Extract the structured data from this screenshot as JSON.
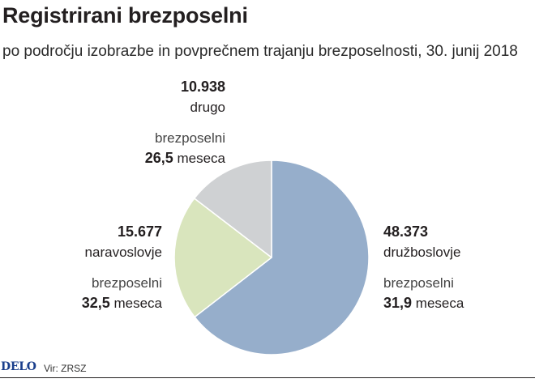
{
  "title": "Registrirani brezposelni",
  "subtitle": "po področju izobrazbe in povprečnem trajanju brezposelnosti, 30. junij 2018",
  "footer": {
    "logo": "DELO",
    "source": "Vir: ZRSZ"
  },
  "colors": {
    "druzboslovje": "#96aecb",
    "naravoslovje": "#d9e5bd",
    "drugo": "#cfd1d3"
  },
  "chart_data": {
    "type": "pie",
    "title": "Registrirani brezposelni",
    "subtitle": "po področju izobrazbe in povprečnem trajanju brezposelnosti, 30. junij 2018",
    "slices": [
      {
        "label": "družboslovje",
        "value": 48373,
        "value_text": "48.373",
        "duration_label": "brezposelni",
        "duration_value": "31,9",
        "duration_unit": "meseca",
        "color": "#96aecb"
      },
      {
        "label": "naravoslovje",
        "value": 15677,
        "value_text": "15.677",
        "duration_label": "brezposelni",
        "duration_value": "32,5",
        "duration_unit": "meseca",
        "color": "#d9e5bd"
      },
      {
        "label": "drugo",
        "value": 10938,
        "value_text": "10.938",
        "duration_label": "brezposelni",
        "duration_value": "26,5",
        "duration_unit": "meseca",
        "color": "#cfd1d3"
      }
    ]
  }
}
